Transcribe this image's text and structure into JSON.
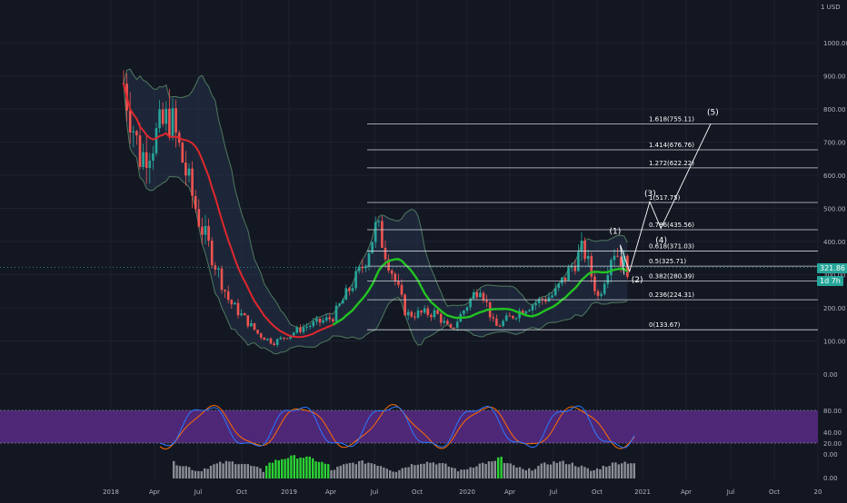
{
  "unit_label": "1 USD",
  "price_tag": "321.86",
  "time_tag": "1d 7h",
  "colors": {
    "background": "#131722",
    "grid": "#1e2230",
    "up_candle": "#26a69a",
    "down_candle": "#ef5350",
    "upper_ma": "#e0282e",
    "lower_ma": "#22c322",
    "bollinger": "#4f7a5e",
    "fib_line": "#d1d4dc",
    "stoch_band": "#5b2a86",
    "stoch_k": "#2979ff",
    "stoch_d": "#ff6d00",
    "volume_up": "#2bd234",
    "volume_neutral": "#8a8d94"
  },
  "chart_data": [
    {
      "type": "candlestick",
      "x": [
        "2018",
        "Apr",
        "Jul",
        "Oct",
        "2019",
        "Apr",
        "Jul",
        "Oct",
        "2020",
        "Apr",
        "Jul",
        "Oct",
        "2021",
        "Apr",
        "Jul",
        "Oct",
        "20"
      ],
      "y_ticks": [
        "1000.00",
        "900.00",
        "800.00",
        "700.00",
        "600.00",
        "500.00",
        "400.00",
        "300.00",
        "200.00",
        "100.00",
        "0.00"
      ],
      "last_price": 321.86,
      "fibonacci_levels": [
        {
          "label": "1.618(755.11)",
          "value": 755.11
        },
        {
          "label": "1.414(676.76)",
          "value": 676.76
        },
        {
          "label": "1.272(622.22)",
          "value": 622.22
        },
        {
          "label": "1(517.75)",
          "value": 517.75
        },
        {
          "label": "0.786(435.56)",
          "value": 435.56
        },
        {
          "label": "0.618(371.03)",
          "value": 371.03
        },
        {
          "label": "0.5(325.71)",
          "value": 325.71
        },
        {
          "label": "0.382(280.39)",
          "value": 280.39
        },
        {
          "label": "0.236(224.31)",
          "value": 224.31
        },
        {
          "label": "0(133.67)",
          "value": 133.67
        }
      ],
      "wave_labels": [
        "(1)",
        "(2)",
        "(3)",
        "(4)",
        "(5)"
      ],
      "price_path": [
        {
          "x": "2018-01",
          "y": 1050
        },
        {
          "x": "2018-03",
          "y": 650
        },
        {
          "x": "2018-05",
          "y": 780
        },
        {
          "x": "2018-07",
          "y": 460
        },
        {
          "x": "2018-09",
          "y": 220
        },
        {
          "x": "2018-11",
          "y": 120
        },
        {
          "x": "2018-12",
          "y": 95
        },
        {
          "x": "2019-02",
          "y": 140
        },
        {
          "x": "2019-04",
          "y": 170
        },
        {
          "x": "2019-06",
          "y": 320
        },
        {
          "x": "2019-07",
          "y": 450
        },
        {
          "x": "2019-09",
          "y": 180
        },
        {
          "x": "2019-11",
          "y": 185
        },
        {
          "x": "2019-12",
          "y": 130
        },
        {
          "x": "2020-02",
          "y": 270
        },
        {
          "x": "2020-03",
          "y": 140
        },
        {
          "x": "2020-05",
          "y": 200
        },
        {
          "x": "2020-07",
          "y": 240
        },
        {
          "x": "2020-09",
          "y": 380
        },
        {
          "x": "2020-10",
          "y": 230
        },
        {
          "x": "2020-11",
          "y": 380
        },
        {
          "x": "2020-12",
          "y": 320
        }
      ]
    },
    {
      "type": "line",
      "name": "stochastic",
      "y_ticks": [
        "80.00",
        "40.00",
        "20.00",
        "0.00"
      ],
      "band": [
        20,
        80
      ]
    },
    {
      "type": "bar",
      "name": "volume",
      "y_ticks": [
        "0.00"
      ]
    }
  ]
}
